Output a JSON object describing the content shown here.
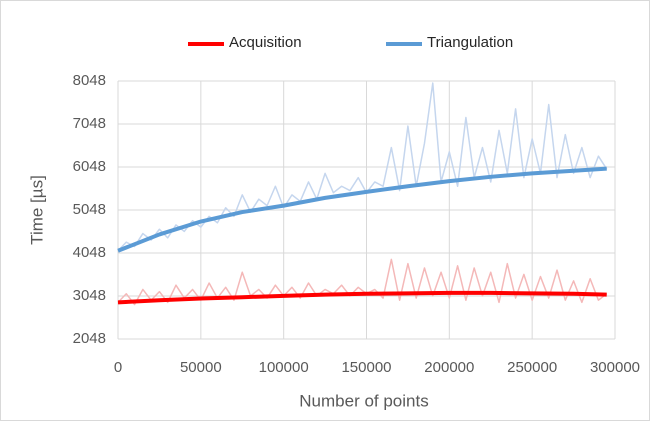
{
  "chart_data": {
    "type": "line",
    "xlabel": "Number of points",
    "ylabel": "Time [µs]",
    "xlim": [
      0,
      300000
    ],
    "xticks": [
      0,
      50000,
      100000,
      150000,
      200000,
      250000,
      300000
    ],
    "ylim": [
      2048,
      8048
    ],
    "yticks": [
      2048,
      3048,
      4048,
      5048,
      6048,
      7048,
      8048
    ],
    "grid": true,
    "legend": "top",
    "series": [
      {
        "color": "#f4b8b8",
        "x": [
          0,
          5000,
          10000,
          15000,
          20000,
          25000,
          30000,
          35000,
          40000,
          45000,
          50000,
          55000,
          60000,
          65000,
          70000,
          75000,
          80000,
          85000,
          90000,
          95000,
          100000,
          105000,
          110000,
          115000,
          120000,
          125000,
          130000,
          135000,
          140000,
          145000,
          150000,
          155000,
          160000,
          165000,
          170000,
          175000,
          180000,
          185000,
          190000,
          195000,
          200000,
          205000,
          210000,
          215000,
          220000,
          225000,
          230000,
          235000,
          240000,
          245000,
          250000,
          255000,
          260000,
          265000,
          270000,
          275000,
          280000,
          285000,
          290000,
          295000
        ],
        "values": [
          2900,
          3100,
          2850,
          3200,
          2950,
          3150,
          2900,
          3300,
          3000,
          3200,
          2950,
          3350,
          3000,
          3250,
          2950,
          3600,
          3050,
          3200,
          3000,
          3300,
          3050,
          3250,
          3000,
          3350,
          3050,
          3200,
          3100,
          3300,
          3050,
          3250,
          3100,
          3200,
          3000,
          3900,
          2950,
          3800,
          3000,
          3700,
          3050,
          3600,
          3000,
          3750,
          2950,
          3700,
          3050,
          3600,
          2900,
          3800,
          3000,
          3550,
          2950,
          3500,
          3000,
          3650,
          2950,
          3400,
          2900,
          3450,
          2950,
          3100
        ]
      },
      {
        "color": "#c5d6ee",
        "x": [
          0,
          5000,
          10000,
          15000,
          20000,
          25000,
          30000,
          35000,
          40000,
          45000,
          50000,
          55000,
          60000,
          65000,
          70000,
          75000,
          80000,
          85000,
          90000,
          95000,
          100000,
          105000,
          110000,
          115000,
          120000,
          125000,
          130000,
          135000,
          140000,
          145000,
          150000,
          155000,
          160000,
          165000,
          170000,
          175000,
          180000,
          185000,
          190000,
          195000,
          200000,
          205000,
          210000,
          215000,
          220000,
          225000,
          230000,
          235000,
          240000,
          245000,
          250000,
          255000,
          260000,
          265000,
          270000,
          275000,
          280000,
          285000,
          290000,
          295000
        ],
        "values": [
          4100,
          4300,
          4200,
          4500,
          4350,
          4600,
          4400,
          4700,
          4550,
          4800,
          4650,
          4900,
          4750,
          5100,
          4900,
          5400,
          5000,
          5300,
          5150,
          5600,
          5100,
          5400,
          5250,
          5700,
          5300,
          5900,
          5450,
          5600,
          5500,
          5800,
          5450,
          5700,
          5600,
          6500,
          5500,
          7000,
          5600,
          6600,
          8000,
          5700,
          6400,
          5600,
          7200,
          5800,
          6500,
          5700,
          6900,
          5900,
          7400,
          5800,
          6700,
          5900,
          7500,
          5800,
          6800,
          5900,
          6500,
          5800,
          6300,
          6000
        ]
      },
      {
        "name": "Acquisition",
        "color": "#ff0000",
        "x": [
          0,
          25000,
          50000,
          75000,
          100000,
          125000,
          150000,
          175000,
          200000,
          225000,
          250000,
          275000,
          295000
        ],
        "values": [
          2900,
          2950,
          2990,
          3020,
          3050,
          3080,
          3100,
          3110,
          3120,
          3120,
          3110,
          3100,
          3080
        ]
      },
      {
        "name": "Triangulation",
        "color": "#5b9bd5",
        "x": [
          0,
          25000,
          50000,
          75000,
          100000,
          125000,
          150000,
          175000,
          200000,
          225000,
          250000,
          275000,
          295000
        ],
        "values": [
          4100,
          4480,
          4780,
          5000,
          5150,
          5330,
          5470,
          5600,
          5720,
          5820,
          5900,
          5960,
          6010
        ]
      }
    ]
  }
}
